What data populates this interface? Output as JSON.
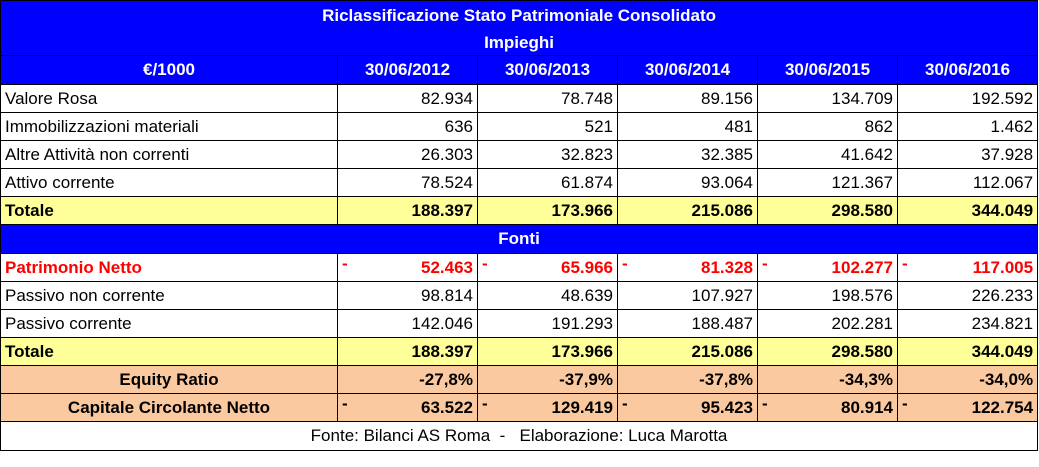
{
  "title": "Riclassificazione Stato Patrimoniale Consolidato",
  "subtitle_impieghi": "Impieghi",
  "header": {
    "unit": "€/1000",
    "years": [
      "30/06/2012",
      "30/06/2013",
      "30/06/2014",
      "30/06/2015",
      "30/06/2016"
    ]
  },
  "impieghi": [
    {
      "label": "Valore Rosa",
      "values": [
        "82.934",
        "78.748",
        "89.156",
        "134.709",
        "192.592"
      ]
    },
    {
      "label": "Immobilizzazioni materiali",
      "values": [
        "636",
        "521",
        "481",
        "862",
        "1.462"
      ]
    },
    {
      "label": "Altre Attività non correnti",
      "values": [
        "26.303",
        "32.823",
        "32.385",
        "41.642",
        "37.928"
      ]
    },
    {
      "label": "Attivo corrente",
      "values": [
        "78.524",
        "61.874",
        "93.064",
        "121.367",
        "112.067"
      ]
    }
  ],
  "totale_impieghi": {
    "label": "Totale",
    "values": [
      "188.397",
      "173.966",
      "215.086",
      "298.580",
      "344.049"
    ]
  },
  "subtitle_fonti": "Fonti",
  "patrimonio_netto": {
    "label": "Patrimonio Netto",
    "sign": "-",
    "values": [
      "52.463",
      "65.966",
      "81.328",
      "102.277",
      "117.005"
    ]
  },
  "fonti": [
    {
      "label": "Passivo non corrente",
      "values": [
        "98.814",
        "48.639",
        "107.927",
        "198.576",
        "226.233"
      ]
    },
    {
      "label": "Passivo corrente",
      "values": [
        "142.046",
        "191.293",
        "188.487",
        "202.281",
        "234.821"
      ]
    }
  ],
  "totale_fonti": {
    "label": "Totale",
    "values": [
      "188.397",
      "173.966",
      "215.086",
      "298.580",
      "344.049"
    ]
  },
  "equity_ratio": {
    "label": "Equity Ratio",
    "values": [
      "-27,8%",
      "-37,9%",
      "-37,8%",
      "-34,3%",
      "-34,0%"
    ]
  },
  "ccn": {
    "label": "Capitale Circolante Netto",
    "sign": "-",
    "values": [
      "63.522",
      "129.419",
      "95.423",
      "80.914",
      "122.754"
    ]
  },
  "footer": "Fonte: Bilanci AS Roma  -   Elaborazione: Luca Marotta",
  "colors": {
    "header_blue": "#0000ff",
    "total_yellow": "#ffff99",
    "ratio_salmon": "#fbc9a0",
    "negative_red": "#ff0000"
  }
}
